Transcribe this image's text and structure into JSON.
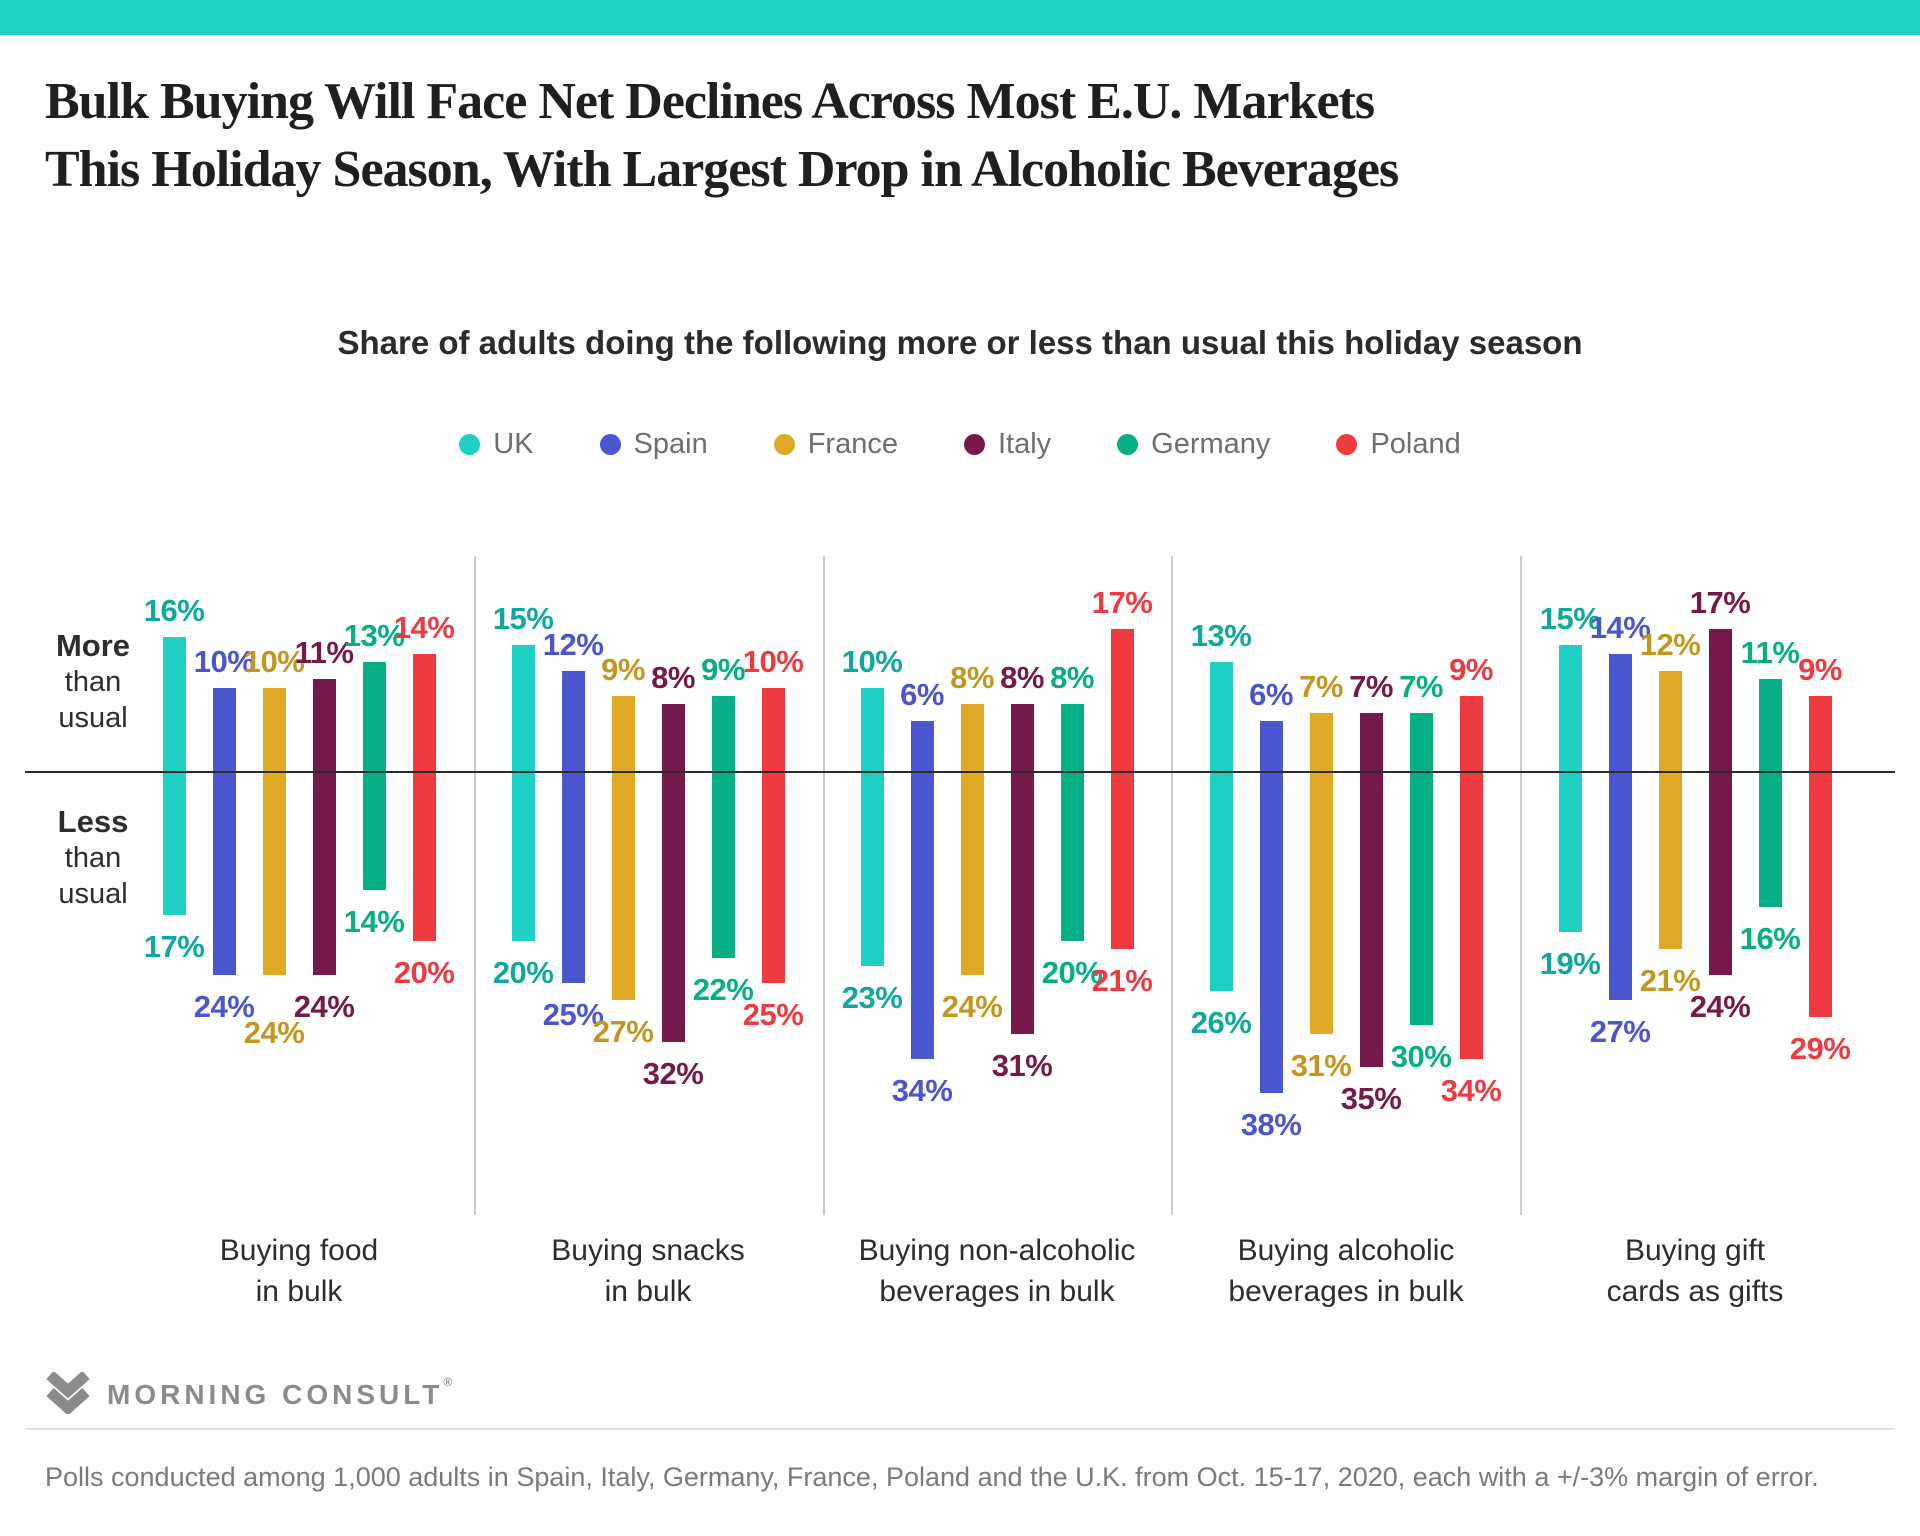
{
  "banner": {
    "color": "#1ed3c4"
  },
  "header": {
    "title_line1": "Bulk Buying Will Face Net Declines Across Most E.U. Markets",
    "title_line2": "This Holiday Season, With Largest Drop in Alcoholic Beverages",
    "subtitle": "Share of adults doing the following more or less than usual this holiday season"
  },
  "chart_data": {
    "type": "bar",
    "variant": "diverging-grouped-bars",
    "value_suffix": "%",
    "grid": false,
    "legend_position": "top",
    "axis_labels": {
      "positive": [
        "More",
        "than",
        "usual"
      ],
      "negative": [
        "Less",
        "than",
        "usual"
      ]
    },
    "categories": [
      "Buying food in bulk",
      "Buying snacks in bulk",
      "Buying non-alcoholic beverages in bulk",
      "Buying alcoholic beverages in bulk",
      "Buying gift cards as gifts"
    ],
    "category_label_lines": [
      [
        "Buying food",
        "in bulk"
      ],
      [
        "Buying snacks",
        "in bulk"
      ],
      [
        "Buying non-alcoholic",
        "beverages in bulk"
      ],
      [
        "Buying alcoholic",
        "beverages in bulk"
      ],
      [
        "Buying gift",
        "cards as gifts"
      ]
    ],
    "series": [
      {
        "name": "UK",
        "color": "#1ed0c3",
        "label_color": "#0ea89d",
        "more": [
          16,
          15,
          10,
          13,
          15
        ],
        "less": [
          17,
          20,
          23,
          26,
          19
        ]
      },
      {
        "name": "Spain",
        "color": "#4a55ce",
        "label_color": "#4a55ce",
        "more": [
          10,
          12,
          6,
          6,
          14
        ],
        "less": [
          24,
          25,
          34,
          38,
          27
        ]
      },
      {
        "name": "France",
        "color": "#dfa926",
        "label_color": "#c2961f",
        "more": [
          10,
          9,
          8,
          7,
          12
        ],
        "less": [
          24,
          27,
          24,
          31,
          21
        ]
      },
      {
        "name": "Italy",
        "color": "#75194a",
        "label_color": "#75194a",
        "more": [
          11,
          8,
          8,
          7,
          17
        ],
        "less": [
          24,
          32,
          31,
          35,
          24
        ]
      },
      {
        "name": "Germany",
        "color": "#06ae85",
        "label_color": "#06ae85",
        "more": [
          13,
          9,
          8,
          7,
          11
        ],
        "less": [
          14,
          22,
          20,
          30,
          16
        ]
      },
      {
        "name": "Poland",
        "color": "#ee3b42",
        "label_color": "#ee3b42",
        "more": [
          14,
          10,
          17,
          9,
          9
        ],
        "less": [
          20,
          25,
          21,
          34,
          29
        ]
      }
    ]
  },
  "footer": {
    "brand": "MORNING CONSULT",
    "brand_mark": "®",
    "note": "Polls conducted among 1,000 adults in Spain, Italy, Germany, France, Poland and the U.K. from Oct. 15-17, 2020, each with a +/-3% margin of error."
  }
}
